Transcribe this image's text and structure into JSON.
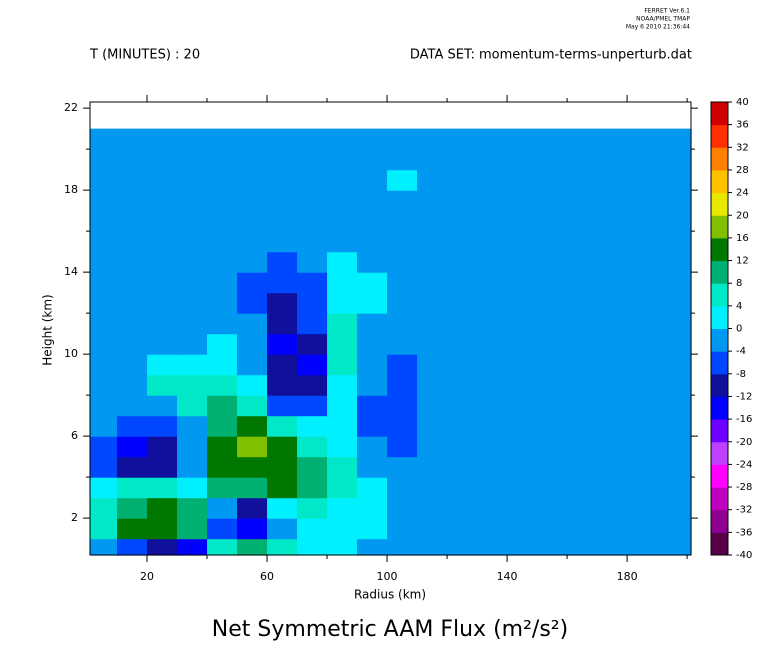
{
  "chart_data": {
    "type": "contour",
    "stamp": [
      "FERRET Ver.6.1",
      "NOAA/PMEL TMAP",
      "May  6 2010 21:36:44"
    ],
    "header_left": "T (MINUTES) : 20",
    "header_right": "DATA SET: momentum-terms-unperturb.dat",
    "title": "Net Symmetric AAM Flux (m²/s²)",
    "xlabel": "Radius (km)",
    "ylabel": "Height (km)",
    "xlim": [
      1,
      201.3
    ],
    "ylim": [
      0.2,
      22.3
    ],
    "xticks": [
      20,
      60,
      100,
      140,
      180
    ],
    "xminor": [
      40,
      80,
      120,
      160,
      200
    ],
    "yticks": [
      2,
      6,
      10,
      14,
      18,
      22
    ],
    "yminor": [
      4,
      8,
      12,
      16,
      20
    ],
    "x": [
      5,
      15,
      25,
      35,
      45,
      55,
      65,
      75,
      85,
      95,
      105,
      115,
      125,
      135,
      145,
      155,
      165,
      175,
      185,
      195
    ],
    "y": [
      0.5,
      1.5,
      2.5,
      3.5,
      4.5,
      5.5,
      6.5,
      7.5,
      8.5,
      9.5,
      10.5,
      11.5,
      12.5,
      13.5,
      14.5,
      15.5,
      16.5,
      17.5,
      18.5,
      19.5,
      20.5
    ],
    "z": [
      [
        -2,
        -6,
        -12,
        -14,
        4,
        8,
        4,
        2,
        0,
        -2,
        -2,
        -2,
        -2,
        -2,
        -2,
        -2,
        -2,
        -2,
        -2,
        -2
      ],
      [
        6,
        12,
        14,
        10,
        -6,
        -14,
        -4,
        2,
        2,
        0,
        -2,
        -2,
        -2,
        -2,
        -2,
        -2,
        -2,
        -2,
        -2,
        -2
      ],
      [
        4,
        10,
        12,
        8,
        -2,
        -10,
        2,
        6,
        2,
        0,
        -2,
        -2,
        -2,
        -2,
        -2,
        -2,
        -2,
        -2,
        -2,
        -2
      ],
      [
        2,
        4,
        6,
        2,
        8,
        10,
        12,
        10,
        6,
        2,
        -2,
        -2,
        -2,
        -2,
        -2,
        -2,
        -2,
        -2,
        -2,
        -2
      ],
      [
        -6,
        -12,
        -10,
        -4,
        12,
        14,
        12,
        10,
        4,
        -2,
        -4,
        -2,
        -2,
        -2,
        -2,
        -2,
        -2,
        -2,
        -2,
        -2
      ],
      [
        -6,
        -14,
        -12,
        -4,
        12,
        16,
        12,
        6,
        2,
        -4,
        -6,
        -2,
        -2,
        -2,
        -2,
        -2,
        -2,
        -2,
        -2,
        -2
      ],
      [
        -4,
        -8,
        -8,
        -2,
        10,
        12,
        6,
        2,
        0,
        -6,
        -8,
        -2,
        -2,
        -2,
        -2,
        -2,
        -2,
        -2,
        -2,
        -2
      ],
      [
        -2,
        -4,
        -2,
        6,
        8,
        6,
        -6,
        -6,
        0,
        -6,
        -8,
        -2,
        -2,
        -2,
        -2,
        -2,
        -2,
        -2,
        -2,
        -2
      ],
      [
        -2,
        -2,
        4,
        6,
        4,
        0,
        -10,
        -10,
        2,
        -4,
        -8,
        -2,
        -2,
        -2,
        -2,
        -2,
        -2,
        -2,
        -2,
        -2
      ],
      [
        -2,
        -2,
        2,
        2,
        0,
        -2,
        -12,
        -14,
        4,
        -2,
        -6,
        -2,
        -2,
        -2,
        -2,
        -2,
        -2,
        -2,
        -2,
        -2
      ],
      [
        -2,
        -2,
        -4,
        -2,
        2,
        -4,
        -14,
        -10,
        6,
        -2,
        -4,
        -2,
        -2,
        -2,
        -2,
        -2,
        -2,
        -2,
        -2,
        -2
      ],
      [
        -2,
        -2,
        -4,
        -4,
        -2,
        -4,
        -12,
        -8,
        4,
        -2,
        -2,
        -2,
        -2,
        -2,
        -2,
        -2,
        -2,
        -2,
        -2,
        -2
      ],
      [
        -2,
        -2,
        -2,
        -2,
        -4,
        -6,
        -10,
        -6,
        2,
        0,
        -2,
        -2,
        -2,
        -2,
        -2,
        -2,
        -2,
        -2,
        -2,
        -2
      ],
      [
        -2,
        -2,
        -2,
        -2,
        -4,
        -6,
        -8,
        -6,
        2,
        0,
        -2,
        -2,
        -2,
        -2,
        -2,
        -2,
        -2,
        -2,
        -2,
        -2
      ],
      [
        -2,
        -2,
        -2,
        -2,
        -4,
        -4,
        -6,
        -4,
        0,
        -2,
        -2,
        -2,
        -2,
        -2,
        -2,
        -2,
        -2,
        -2,
        -2,
        -2
      ],
      [
        -2,
        -2,
        -2,
        -2,
        -2,
        -4,
        -4,
        -4,
        -2,
        -2,
        -2,
        -2,
        -2,
        -2,
        -2,
        -2,
        -2,
        -2,
        -2,
        -2
      ],
      [
        -2,
        -2,
        -2,
        -2,
        -2,
        -2,
        -2,
        -4,
        -2,
        -2,
        -2,
        -2,
        -2,
        -2,
        -2,
        -2,
        -2,
        -2,
        -2,
        -2
      ],
      [
        -2,
        -2,
        -2,
        -2,
        -2,
        -2,
        -2,
        -2,
        -2,
        -2,
        -2,
        -2,
        -2,
        -2,
        -2,
        -2,
        -2,
        -2,
        -2,
        -2
      ],
      [
        -2,
        -2,
        -2,
        -2,
        -2,
        -2,
        -2,
        -2,
        -2,
        -2,
        2,
        -2,
        -2,
        -2,
        -2,
        -2,
        -2,
        -2,
        -2,
        -2
      ],
      [
        -2,
        -2,
        -2,
        -2,
        -2,
        -2,
        -2,
        -2,
        -2,
        -2,
        -2,
        -2,
        -2,
        -2,
        -2,
        -2,
        -2,
        -2,
        -2,
        -2
      ],
      [
        -2,
        -2,
        -2,
        -2,
        -2,
        -2,
        -2,
        -2,
        -2,
        -2,
        -2,
        -2,
        -2,
        -2,
        -2,
        -2,
        -2,
        -2,
        -2,
        -2
      ]
    ],
    "levels": [
      -40,
      -36,
      -32,
      -28,
      -24,
      -20,
      -16,
      -12,
      -8,
      -4,
      0,
      4,
      8,
      12,
      16,
      20,
      24,
      28,
      32,
      36,
      40
    ],
    "colors": [
      "#5a0048",
      "#900090",
      "#c000c0",
      "#ff00ff",
      "#c040ff",
      "#7000ff",
      "#0000ff",
      "#10109c",
      "#0048ff",
      "#0098f0",
      "#00f0ff",
      "#00e8c8",
      "#00b070",
      "#007800",
      "#80c000",
      "#e8e800",
      "#ffc000",
      "#ff8000",
      "#ff3000",
      "#d00000",
      "#7a0000"
    ]
  }
}
